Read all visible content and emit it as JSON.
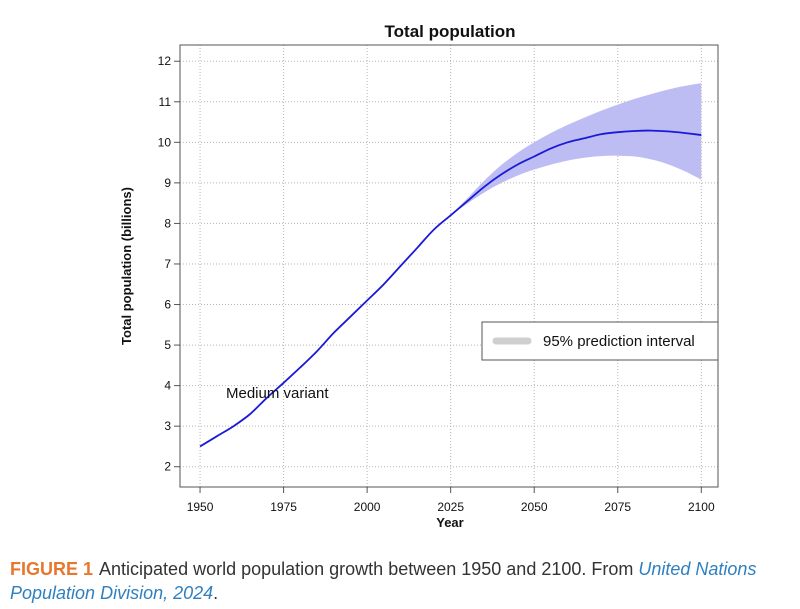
{
  "chart_data": {
    "type": "line",
    "title": "Total population",
    "xlabel": "Year",
    "ylabel": "Total population (billions)",
    "xlim": [
      1944,
      2105
    ],
    "ylim": [
      1.5,
      12.4
    ],
    "x_ticks": [
      1950,
      1975,
      2000,
      2025,
      2050,
      2075,
      2100
    ],
    "y_ticks": [
      2,
      3,
      4,
      5,
      6,
      7,
      8,
      9,
      10,
      11,
      12
    ],
    "grid": true,
    "legend_position": "right",
    "series": [
      {
        "name": "Medium variant",
        "x": [
          1950,
          1955,
          1960,
          1965,
          1970,
          1975,
          1980,
          1985,
          1990,
          1995,
          2000,
          2005,
          2010,
          2015,
          2020,
          2025,
          2030,
          2035,
          2040,
          2045,
          2050,
          2055,
          2060,
          2065,
          2070,
          2075,
          2080,
          2085,
          2090,
          2095,
          2100
        ],
        "y": [
          2.5,
          2.75,
          3.0,
          3.3,
          3.7,
          4.07,
          4.45,
          4.85,
          5.3,
          5.7,
          6.1,
          6.5,
          6.95,
          7.4,
          7.85,
          8.2,
          8.55,
          8.9,
          9.2,
          9.45,
          9.65,
          9.85,
          10.0,
          10.1,
          10.2,
          10.25,
          10.28,
          10.29,
          10.27,
          10.23,
          10.18
        ]
      }
    ],
    "interval": {
      "name": "95% prediction interval",
      "x": [
        2025,
        2030,
        2035,
        2040,
        2045,
        2050,
        2055,
        2060,
        2065,
        2070,
        2075,
        2080,
        2085,
        2090,
        2095,
        2100
      ],
      "lower": [
        8.2,
        8.49,
        8.76,
        8.99,
        9.18,
        9.33,
        9.45,
        9.55,
        9.62,
        9.66,
        9.67,
        9.65,
        9.58,
        9.46,
        9.29,
        9.08
      ],
      "upper": [
        8.2,
        8.62,
        9.05,
        9.43,
        9.74,
        10.0,
        10.23,
        10.43,
        10.61,
        10.78,
        10.93,
        11.07,
        11.19,
        11.3,
        11.39,
        11.46
      ]
    }
  },
  "caption": {
    "label": "FIGURE 1",
    "text": "Anticipated world population growth between 1950 and 2100. From ",
    "link": "United Nations Population Division, 2024",
    "end": "."
  },
  "colors": {
    "line": "#1a1ad6",
    "band": "#bdbdf4",
    "legend_swatch": "#cfcfcf",
    "figure_label": "#e8772e",
    "link": "#2f80c0"
  }
}
